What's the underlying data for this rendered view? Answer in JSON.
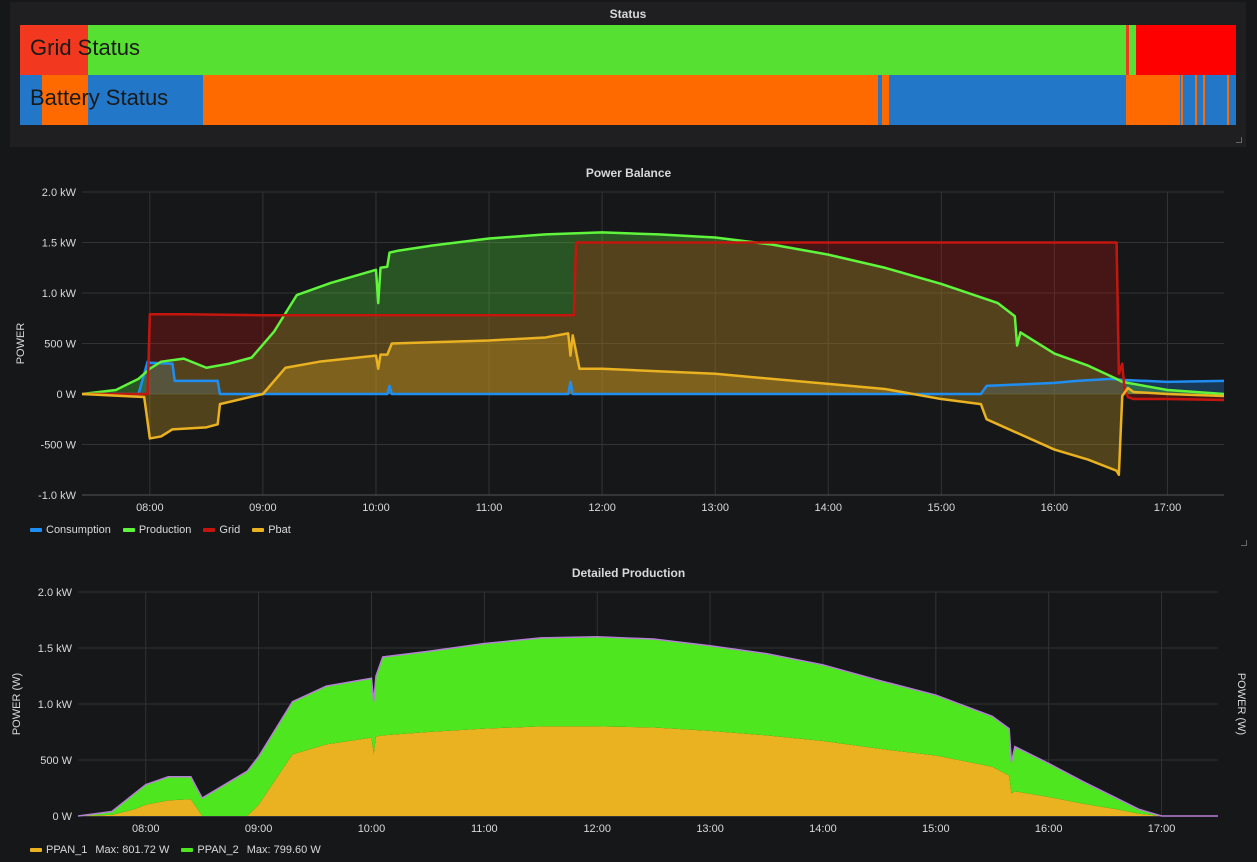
{
  "status_panel": {
    "title": "Status",
    "grid_label": "Grid Status",
    "battery_label": "Battery Status",
    "colors": {
      "red": "#f2381f",
      "bright_red": "#ff0000",
      "green": "#56e032",
      "orange": "#ff6a00",
      "blue": "#2277c8"
    }
  },
  "power_balance": {
    "title": "Power Balance",
    "ylabel": "POWER",
    "legend": [
      {
        "name": "Consumption",
        "color": "#1f8ef2"
      },
      {
        "name": "Production",
        "color": "#5ff53c"
      },
      {
        "name": "Grid",
        "color": "#c4160e"
      },
      {
        "name": "Pbat",
        "color": "#eab220"
      }
    ]
  },
  "detailed_production": {
    "title": "Detailed Production",
    "ylabel_left": "POWER (W)",
    "ylabel_right": "POWER (W)",
    "legend": [
      {
        "name": "PPAN_1",
        "max_label": "Max: 801.72 W",
        "color": "#eab220"
      },
      {
        "name": "PPAN_2",
        "max_label": "Max: 799.60 W",
        "color": "#4ee61e"
      }
    ]
  },
  "chart_data": [
    {
      "type": "line",
      "title": "Power Balance",
      "xlabel": "",
      "ylabel": "POWER",
      "x_ticks": [
        "08:00",
        "09:00",
        "10:00",
        "11:00",
        "12:00",
        "13:00",
        "14:00",
        "15:00",
        "16:00",
        "17:00"
      ],
      "y_ticks": [
        "2.0 kW",
        "1.5 kW",
        "1.0 kW",
        "500 W",
        "0 W",
        "-500 W",
        "-1.0 kW"
      ],
      "xlim": [
        7.4,
        17.5
      ],
      "ylim": [
        -1000,
        2000
      ],
      "grid": true,
      "legend_position": "bottom-left",
      "series": [
        {
          "name": "Consumption",
          "x": [
            7.4,
            7.9,
            7.98,
            8.0,
            8.2,
            8.22,
            8.6,
            8.62,
            10.1,
            10.12,
            10.14,
            11.7,
            11.72,
            11.74,
            15.35,
            15.4,
            15.6,
            16.0,
            16.2,
            16.5,
            16.6,
            17.0,
            17.5
          ],
          "y": [
            0,
            0,
            320,
            310,
            300,
            130,
            130,
            0,
            0,
            80,
            0,
            0,
            120,
            0,
            0,
            80,
            90,
            110,
            130,
            150,
            140,
            120,
            130
          ]
        },
        {
          "name": "Production",
          "x": [
            7.4,
            7.7,
            7.9,
            8.0,
            8.1,
            8.3,
            8.5,
            8.7,
            8.9,
            9.1,
            9.3,
            9.6,
            10.0,
            10.02,
            10.04,
            10.1,
            10.12,
            10.2,
            10.5,
            11.0,
            11.5,
            12.0,
            12.5,
            13.0,
            13.5,
            14.0,
            14.5,
            15.0,
            15.5,
            15.65,
            15.67,
            15.7,
            16.0,
            16.3,
            16.55,
            16.6,
            16.8,
            17.0,
            17.5
          ],
          "y": [
            0,
            40,
            150,
            250,
            320,
            350,
            260,
            300,
            360,
            620,
            980,
            1100,
            1230,
            900,
            1250,
            1260,
            1400,
            1420,
            1470,
            1540,
            1580,
            1600,
            1580,
            1550,
            1480,
            1380,
            1250,
            1090,
            900,
            770,
            480,
            610,
            400,
            280,
            150,
            120,
            80,
            40,
            0
          ]
        },
        {
          "name": "Grid",
          "x": [
            7.4,
            7.98,
            8.0,
            8.3,
            9.0,
            10.0,
            11.0,
            11.75,
            11.77,
            12.0,
            13.0,
            14.0,
            15.0,
            15.7,
            16.0,
            16.55,
            16.57,
            16.6,
            16.62,
            16.65,
            16.7,
            17.0,
            17.5
          ],
          "y": [
            0,
            0,
            790,
            790,
            780,
            780,
            780,
            780,
            1500,
            1500,
            1500,
            1500,
            1500,
            1500,
            1500,
            1500,
            200,
            300,
            50,
            -30,
            -50,
            -50,
            -60
          ]
        },
        {
          "name": "Pbat",
          "x": [
            7.4,
            7.95,
            8.0,
            8.1,
            8.2,
            8.5,
            8.6,
            8.62,
            9.0,
            9.2,
            9.5,
            10.0,
            10.02,
            10.04,
            10.1,
            10.14,
            11.0,
            11.5,
            11.7,
            11.72,
            11.74,
            11.8,
            12.0,
            13.0,
            14.0,
            14.5,
            15.0,
            15.35,
            15.4,
            15.5,
            15.7,
            16.0,
            16.3,
            16.55,
            16.57,
            16.6,
            16.65,
            16.7,
            17.0,
            17.5
          ],
          "y": [
            0,
            -30,
            -440,
            -420,
            -350,
            -330,
            -300,
            -100,
            0,
            260,
            320,
            380,
            250,
            390,
            390,
            500,
            530,
            560,
            600,
            380,
            580,
            250,
            250,
            200,
            100,
            50,
            -50,
            -100,
            -250,
            -300,
            -400,
            -550,
            -650,
            -760,
            -800,
            -20,
            60,
            20,
            0,
            -20
          ]
        }
      ]
    },
    {
      "type": "area",
      "title": "Detailed Production",
      "xlabel": "",
      "ylabel": "POWER (W)",
      "x_ticks": [
        "08:00",
        "09:00",
        "10:00",
        "11:00",
        "12:00",
        "13:00",
        "14:00",
        "15:00",
        "16:00",
        "17:00"
      ],
      "y_ticks": [
        "2.0 kW",
        "1.5 kW",
        "1.0 kW",
        "500 W",
        "0 W"
      ],
      "xlim": [
        7.4,
        17.5
      ],
      "ylim": [
        0,
        2000
      ],
      "stacked": true,
      "grid": true,
      "legend_position": "bottom-left",
      "series": [
        {
          "name": "PPAN_1",
          "x": [
            7.4,
            7.7,
            7.9,
            8.0,
            8.2,
            8.4,
            8.5,
            8.9,
            9.0,
            9.3,
            9.6,
            10.0,
            10.02,
            10.04,
            10.1,
            10.5,
            11.0,
            11.5,
            12.0,
            12.5,
            13.0,
            13.5,
            14.0,
            14.5,
            15.0,
            15.5,
            15.65,
            15.67,
            15.7,
            16.0,
            16.3,
            16.6,
            16.8,
            17.0,
            17.5
          ],
          "y": [
            0,
            10,
            60,
            100,
            140,
            150,
            0,
            0,
            100,
            550,
            640,
            700,
            550,
            710,
            720,
            750,
            780,
            800,
            800,
            790,
            760,
            720,
            670,
            600,
            540,
            440,
            360,
            200,
            220,
            170,
            110,
            60,
            20,
            0,
            0
          ]
        },
        {
          "name": "PPAN_2",
          "x": [
            7.4,
            7.7,
            7.9,
            8.0,
            8.2,
            8.4,
            8.5,
            8.9,
            9.0,
            9.3,
            9.6,
            10.0,
            10.02,
            10.04,
            10.1,
            10.5,
            11.0,
            11.5,
            12.0,
            12.5,
            13.0,
            13.5,
            14.0,
            14.5,
            15.0,
            15.5,
            15.65,
            15.67,
            15.7,
            16.0,
            16.3,
            16.6,
            16.8,
            17.0,
            17.5
          ],
          "y": [
            0,
            30,
            140,
            180,
            210,
            200,
            160,
            400,
            430,
            470,
            520,
            530,
            470,
            540,
            700,
            720,
            760,
            790,
            800,
            790,
            760,
            730,
            680,
            610,
            540,
            450,
            420,
            280,
            400,
            300,
            200,
            100,
            40,
            0,
            0
          ]
        }
      ]
    }
  ]
}
